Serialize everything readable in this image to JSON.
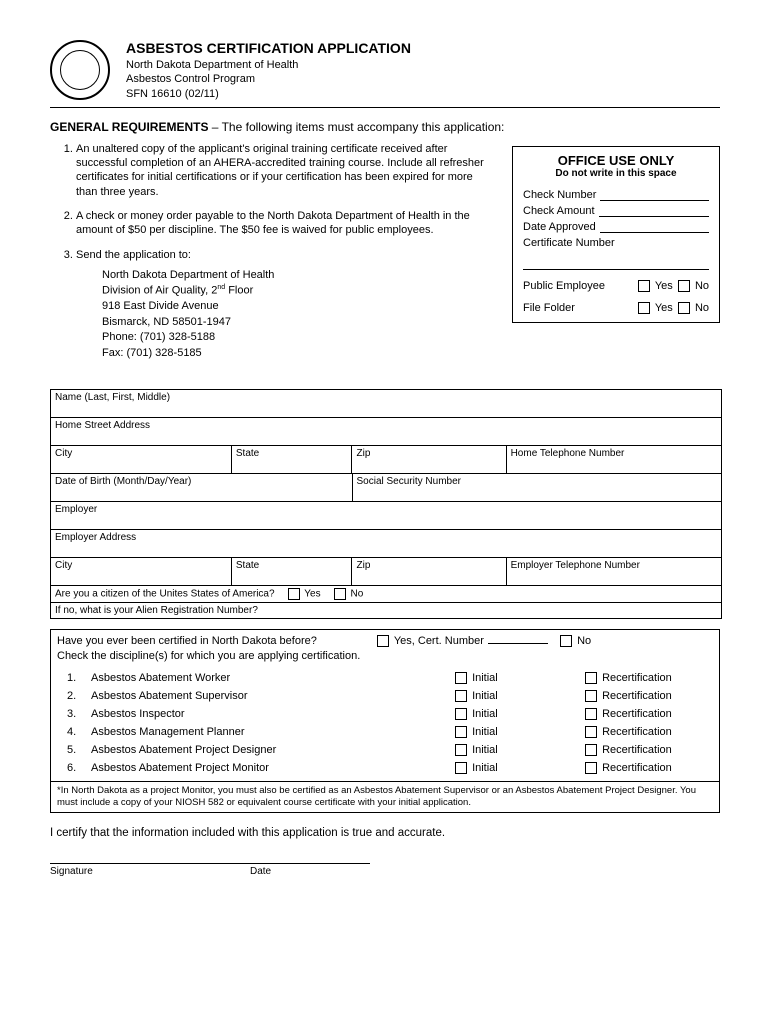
{
  "header": {
    "title": "ASBESTOS CERTIFICATION APPLICATION",
    "dept": "North Dakota Department of Health",
    "program": "Asbestos Control Program",
    "form_id": "SFN 16610 (02/11)"
  },
  "gen_req": {
    "label": "GENERAL REQUIREMENTS",
    "intro": " – The following items must accompany this application:",
    "item1": "An unaltered copy of the applicant's original training certificate received after successful completion of an AHERA-accredited training course.  Include all refresher certificates for initial certifications or if your certification has been expired for more than three years.",
    "item2": "A check or money order payable to the North Dakota Department of Health in the amount of $50 per discipline.  The $50 fee is waived for public employees.",
    "item3": "Send the application to:",
    "addr": {
      "l1": "North Dakota Department of Health",
      "l2_a": "Division of Air Quality, 2",
      "l2_b": " Floor",
      "l2_sup": "nd",
      "l3": "918 East Divide Avenue",
      "l4": "Bismarck, ND 58501-1947",
      "l5": "Phone:   (701) 328-5188",
      "l6": "Fax:       (701) 328-5185"
    }
  },
  "office": {
    "title": "OFFICE USE ONLY",
    "sub": "Do not write in this space",
    "check_num": "Check Number",
    "check_amt": "Check Amount",
    "date_appr": "Date Approved",
    "cert_num": "Certificate Number",
    "pub_emp": "Public Employee",
    "file_folder": "File Folder",
    "yes": "Yes",
    "no": "No"
  },
  "info": {
    "name": "Name (Last, First, Middle)",
    "home_addr": "Home Street Address",
    "city": "City",
    "state": "State",
    "zip": "Zip",
    "home_tel": "Home Telephone Number",
    "dob": "Date of Birth (Month/Day/Year)",
    "ssn": "Social Security Number",
    "employer": "Employer",
    "emp_addr": "Employer Address",
    "emp_tel": "Employer Telephone Number",
    "citizen_q": "Are you a citizen of the Unites States of America?",
    "yes": "Yes",
    "no": "No",
    "alien_q": "If no, what is your Alien Registration Number?"
  },
  "disc": {
    "prev_q": "Have you ever been certified in North Dakota before?",
    "yes_cert": "Yes, Cert. Number",
    "no": "No",
    "check_prompt": "Check the discipline(s) for which you are applying certification.",
    "items": [
      "Asbestos Abatement Worker",
      "Asbestos Abatement Supervisor",
      "Asbestos Inspector",
      "Asbestos Management Planner",
      "Asbestos Abatement Project Designer",
      "Asbestos Abatement Project Monitor"
    ],
    "initial": "Initial",
    "recert": "Recertification",
    "note": "*In North Dakota as a project Monitor, you must also be certified as an Asbestos Abatement Supervisor or an Asbestos Abatement Project Designer.  You must include a copy of your NIOSH 582 or equivalent course certificate with your initial application."
  },
  "certify": "I certify that the information included with this application is true and accurate.",
  "sig": {
    "signature": "Signature",
    "date": "Date"
  }
}
